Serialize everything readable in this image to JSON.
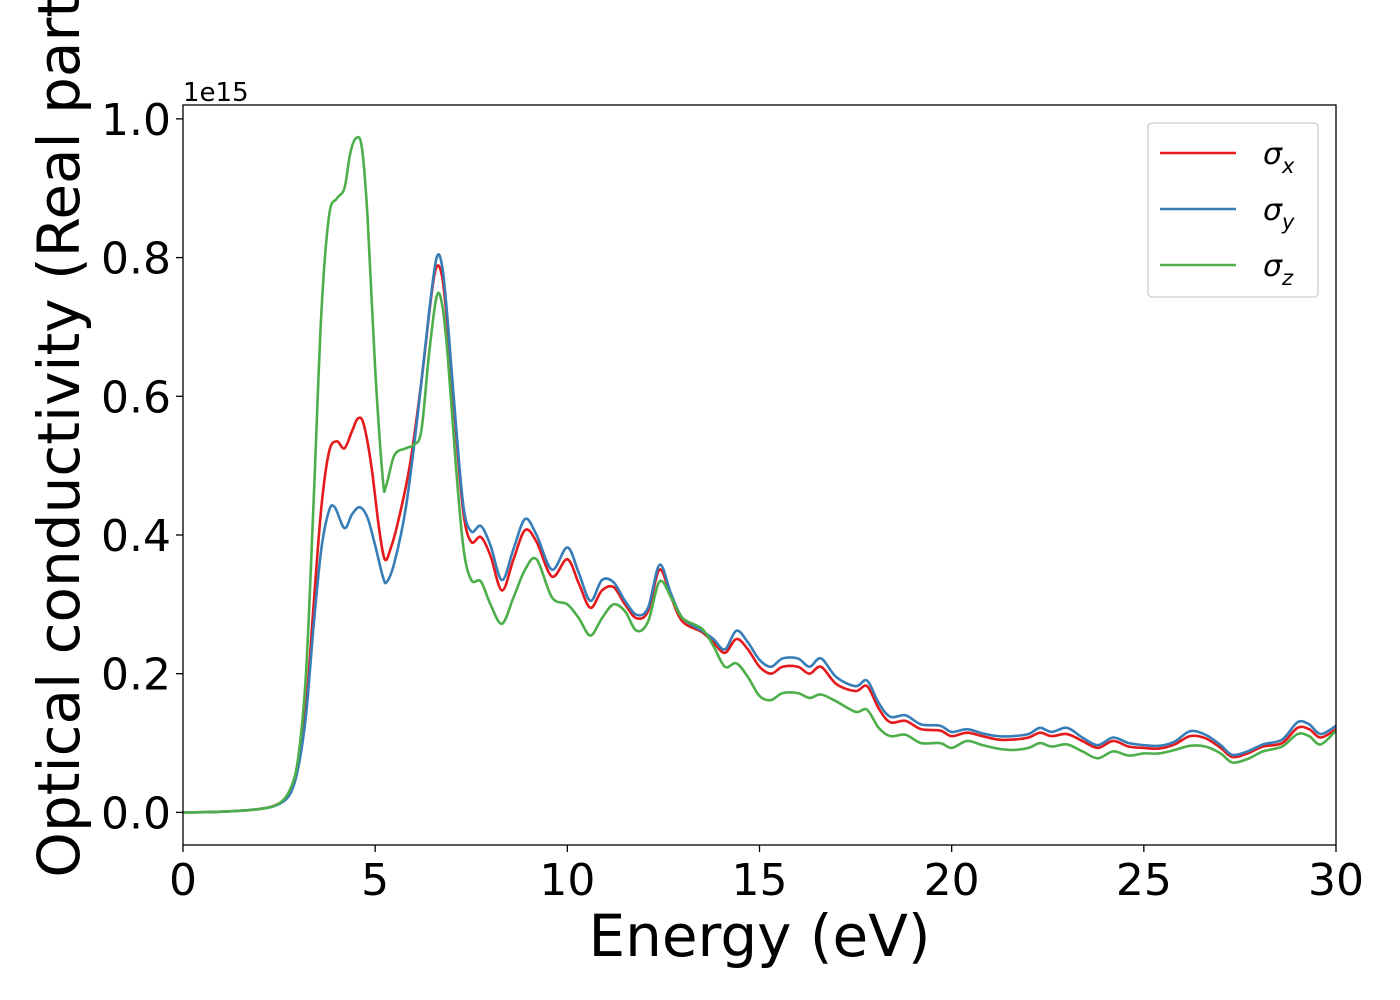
{
  "chart_data": {
    "type": "line",
    "title": "",
    "xlabel": "Energy (eV)",
    "ylabel": "Optical conductivity (Real part)",
    "offset_text": "1e15",
    "xlim": [
      0,
      30
    ],
    "ylim": [
      -0.047,
      1.02
    ],
    "y_scale_factor": 1000000000000000.0,
    "xticks": [
      0,
      5,
      10,
      15,
      20,
      25,
      30
    ],
    "xtick_labels": [
      "0",
      "5",
      "10",
      "15",
      "20",
      "25",
      "30"
    ],
    "yticks": [
      0.0,
      0.2,
      0.4,
      0.6,
      0.8,
      1.0
    ],
    "ytick_labels": [
      "0.0",
      "0.2",
      "0.4",
      "0.6",
      "0.8",
      "1.0"
    ],
    "grid": false,
    "legend_position": "top-right",
    "series": [
      {
        "name": "σx",
        "legend_symbol": "σ",
        "legend_subscript": "x",
        "color": "#e41a1c",
        "points": [
          [
            0,
            0
          ],
          [
            1,
            0.001
          ],
          [
            2,
            0.005
          ],
          [
            2.5,
            0.013
          ],
          [
            2.8,
            0.03
          ],
          [
            3.0,
            0.07
          ],
          [
            3.2,
            0.15
          ],
          [
            3.4,
            0.3
          ],
          [
            3.6,
            0.44
          ],
          [
            3.8,
            0.52
          ],
          [
            4.0,
            0.535
          ],
          [
            4.2,
            0.525
          ],
          [
            4.4,
            0.55
          ],
          [
            4.55,
            0.568
          ],
          [
            4.7,
            0.56
          ],
          [
            4.9,
            0.5
          ],
          [
            5.1,
            0.41
          ],
          [
            5.25,
            0.365
          ],
          [
            5.4,
            0.38
          ],
          [
            5.6,
            0.42
          ],
          [
            5.9,
            0.5
          ],
          [
            6.2,
            0.62
          ],
          [
            6.45,
            0.74
          ],
          [
            6.6,
            0.787
          ],
          [
            6.75,
            0.77
          ],
          [
            6.9,
            0.69
          ],
          [
            7.1,
            0.55
          ],
          [
            7.3,
            0.43
          ],
          [
            7.5,
            0.39
          ],
          [
            7.75,
            0.397
          ],
          [
            8.0,
            0.37
          ],
          [
            8.3,
            0.32
          ],
          [
            8.6,
            0.365
          ],
          [
            8.9,
            0.407
          ],
          [
            9.2,
            0.39
          ],
          [
            9.6,
            0.34
          ],
          [
            10.0,
            0.365
          ],
          [
            10.3,
            0.33
          ],
          [
            10.6,
            0.295
          ],
          [
            10.9,
            0.32
          ],
          [
            11.2,
            0.325
          ],
          [
            11.5,
            0.3
          ],
          [
            11.8,
            0.28
          ],
          [
            12.1,
            0.29
          ],
          [
            12.4,
            0.35
          ],
          [
            12.7,
            0.31
          ],
          [
            13.0,
            0.275
          ],
          [
            13.5,
            0.26
          ],
          [
            13.8,
            0.245
          ],
          [
            14.1,
            0.23
          ],
          [
            14.4,
            0.25
          ],
          [
            14.7,
            0.235
          ],
          [
            15.0,
            0.21
          ],
          [
            15.3,
            0.2
          ],
          [
            15.6,
            0.21
          ],
          [
            16.0,
            0.21
          ],
          [
            16.3,
            0.2
          ],
          [
            16.6,
            0.21
          ],
          [
            17.0,
            0.185
          ],
          [
            17.5,
            0.175
          ],
          [
            17.8,
            0.182
          ],
          [
            18.1,
            0.15
          ],
          [
            18.4,
            0.13
          ],
          [
            18.8,
            0.132
          ],
          [
            19.2,
            0.12
          ],
          [
            19.7,
            0.118
          ],
          [
            20.0,
            0.11
          ],
          [
            20.4,
            0.115
          ],
          [
            20.8,
            0.11
          ],
          [
            21.2,
            0.105
          ],
          [
            21.6,
            0.105
          ],
          [
            22.0,
            0.108
          ],
          [
            22.3,
            0.115
          ],
          [
            22.6,
            0.11
          ],
          [
            23.0,
            0.113
          ],
          [
            23.4,
            0.103
          ],
          [
            23.8,
            0.093
          ],
          [
            24.2,
            0.103
          ],
          [
            24.6,
            0.095
          ],
          [
            25.0,
            0.093
          ],
          [
            25.4,
            0.092
          ],
          [
            25.8,
            0.098
          ],
          [
            26.2,
            0.11
          ],
          [
            26.6,
            0.107
          ],
          [
            27.0,
            0.093
          ],
          [
            27.3,
            0.08
          ],
          [
            27.7,
            0.085
          ],
          [
            28.1,
            0.095
          ],
          [
            28.6,
            0.1
          ],
          [
            29.0,
            0.122
          ],
          [
            29.3,
            0.12
          ],
          [
            29.6,
            0.108
          ],
          [
            30.0,
            0.12
          ]
        ]
      },
      {
        "name": "σy",
        "legend_symbol": "σ",
        "legend_subscript": "y",
        "color": "#377eb8",
        "points": [
          [
            0,
            0
          ],
          [
            1,
            0.001
          ],
          [
            2,
            0.005
          ],
          [
            2.5,
            0.012
          ],
          [
            2.8,
            0.028
          ],
          [
            3.0,
            0.065
          ],
          [
            3.2,
            0.14
          ],
          [
            3.4,
            0.27
          ],
          [
            3.6,
            0.38
          ],
          [
            3.8,
            0.435
          ],
          [
            3.95,
            0.44
          ],
          [
            4.2,
            0.41
          ],
          [
            4.4,
            0.43
          ],
          [
            4.6,
            0.44
          ],
          [
            4.8,
            0.425
          ],
          [
            5.0,
            0.385
          ],
          [
            5.2,
            0.34
          ],
          [
            5.3,
            0.332
          ],
          [
            5.5,
            0.36
          ],
          [
            5.8,
            0.44
          ],
          [
            6.1,
            0.57
          ],
          [
            6.4,
            0.72
          ],
          [
            6.6,
            0.8
          ],
          [
            6.75,
            0.785
          ],
          [
            6.9,
            0.7
          ],
          [
            7.1,
            0.56
          ],
          [
            7.3,
            0.44
          ],
          [
            7.5,
            0.405
          ],
          [
            7.75,
            0.413
          ],
          [
            8.0,
            0.385
          ],
          [
            8.3,
            0.335
          ],
          [
            8.6,
            0.38
          ],
          [
            8.9,
            0.423
          ],
          [
            9.2,
            0.4
          ],
          [
            9.6,
            0.35
          ],
          [
            10.0,
            0.382
          ],
          [
            10.3,
            0.345
          ],
          [
            10.6,
            0.305
          ],
          [
            10.9,
            0.335
          ],
          [
            11.2,
            0.332
          ],
          [
            11.5,
            0.305
          ],
          [
            11.8,
            0.285
          ],
          [
            12.1,
            0.295
          ],
          [
            12.4,
            0.357
          ],
          [
            12.7,
            0.315
          ],
          [
            13.0,
            0.28
          ],
          [
            13.5,
            0.262
          ],
          [
            13.8,
            0.25
          ],
          [
            14.1,
            0.235
          ],
          [
            14.4,
            0.262
          ],
          [
            14.7,
            0.245
          ],
          [
            15.0,
            0.22
          ],
          [
            15.3,
            0.21
          ],
          [
            15.6,
            0.222
          ],
          [
            16.0,
            0.222
          ],
          [
            16.3,
            0.21
          ],
          [
            16.6,
            0.222
          ],
          [
            17.0,
            0.195
          ],
          [
            17.5,
            0.182
          ],
          [
            17.8,
            0.19
          ],
          [
            18.1,
            0.158
          ],
          [
            18.4,
            0.138
          ],
          [
            18.8,
            0.14
          ],
          [
            19.2,
            0.127
          ],
          [
            19.7,
            0.125
          ],
          [
            20.0,
            0.116
          ],
          [
            20.4,
            0.12
          ],
          [
            20.8,
            0.114
          ],
          [
            21.2,
            0.11
          ],
          [
            21.6,
            0.11
          ],
          [
            22.0,
            0.113
          ],
          [
            22.3,
            0.122
          ],
          [
            22.6,
            0.116
          ],
          [
            23.0,
            0.122
          ],
          [
            23.4,
            0.108
          ],
          [
            23.8,
            0.097
          ],
          [
            24.2,
            0.108
          ],
          [
            24.6,
            0.1
          ],
          [
            25.0,
            0.097
          ],
          [
            25.4,
            0.096
          ],
          [
            25.8,
            0.102
          ],
          [
            26.2,
            0.117
          ],
          [
            26.6,
            0.112
          ],
          [
            27.0,
            0.097
          ],
          [
            27.3,
            0.083
          ],
          [
            27.7,
            0.088
          ],
          [
            28.1,
            0.098
          ],
          [
            28.6,
            0.105
          ],
          [
            29.0,
            0.13
          ],
          [
            29.3,
            0.127
          ],
          [
            29.6,
            0.113
          ],
          [
            30.0,
            0.125
          ]
        ]
      },
      {
        "name": "σz",
        "legend_symbol": "σ",
        "legend_subscript": "z",
        "color": "#4daf4a",
        "points": [
          [
            0,
            0
          ],
          [
            1,
            0.001
          ],
          [
            2,
            0.005
          ],
          [
            2.5,
            0.013
          ],
          [
            2.8,
            0.035
          ],
          [
            3.0,
            0.08
          ],
          [
            3.2,
            0.2
          ],
          [
            3.4,
            0.45
          ],
          [
            3.6,
            0.72
          ],
          [
            3.8,
            0.86
          ],
          [
            4.0,
            0.885
          ],
          [
            4.2,
            0.9
          ],
          [
            4.35,
            0.95
          ],
          [
            4.5,
            0.972
          ],
          [
            4.65,
            0.96
          ],
          [
            4.8,
            0.86
          ],
          [
            5.0,
            0.64
          ],
          [
            5.2,
            0.48
          ],
          [
            5.28,
            0.47
          ],
          [
            5.5,
            0.515
          ],
          [
            5.8,
            0.525
          ],
          [
            6.0,
            0.53
          ],
          [
            6.2,
            0.55
          ],
          [
            6.4,
            0.66
          ],
          [
            6.6,
            0.744
          ],
          [
            6.75,
            0.73
          ],
          [
            6.9,
            0.65
          ],
          [
            7.1,
            0.5
          ],
          [
            7.3,
            0.38
          ],
          [
            7.5,
            0.335
          ],
          [
            7.75,
            0.333
          ],
          [
            8.0,
            0.3
          ],
          [
            8.3,
            0.272
          ],
          [
            8.6,
            0.31
          ],
          [
            8.9,
            0.35
          ],
          [
            9.2,
            0.365
          ],
          [
            9.6,
            0.31
          ],
          [
            10.0,
            0.3
          ],
          [
            10.3,
            0.28
          ],
          [
            10.6,
            0.255
          ],
          [
            10.9,
            0.28
          ],
          [
            11.2,
            0.3
          ],
          [
            11.5,
            0.29
          ],
          [
            11.8,
            0.262
          ],
          [
            12.1,
            0.275
          ],
          [
            12.4,
            0.333
          ],
          [
            12.7,
            0.31
          ],
          [
            13.0,
            0.28
          ],
          [
            13.5,
            0.265
          ],
          [
            13.8,
            0.24
          ],
          [
            14.1,
            0.21
          ],
          [
            14.4,
            0.215
          ],
          [
            14.7,
            0.195
          ],
          [
            15.0,
            0.168
          ],
          [
            15.3,
            0.162
          ],
          [
            15.6,
            0.172
          ],
          [
            16.0,
            0.172
          ],
          [
            16.3,
            0.165
          ],
          [
            16.6,
            0.17
          ],
          [
            17.0,
            0.16
          ],
          [
            17.5,
            0.145
          ],
          [
            17.8,
            0.148
          ],
          [
            18.1,
            0.122
          ],
          [
            18.4,
            0.11
          ],
          [
            18.8,
            0.112
          ],
          [
            19.2,
            0.1
          ],
          [
            19.7,
            0.1
          ],
          [
            20.0,
            0.093
          ],
          [
            20.4,
            0.103
          ],
          [
            20.8,
            0.097
          ],
          [
            21.2,
            0.092
          ],
          [
            21.6,
            0.09
          ],
          [
            22.0,
            0.093
          ],
          [
            22.3,
            0.1
          ],
          [
            22.6,
            0.095
          ],
          [
            23.0,
            0.098
          ],
          [
            23.4,
            0.088
          ],
          [
            23.8,
            0.078
          ],
          [
            24.2,
            0.088
          ],
          [
            24.6,
            0.082
          ],
          [
            25.0,
            0.085
          ],
          [
            25.4,
            0.085
          ],
          [
            25.8,
            0.09
          ],
          [
            26.2,
            0.096
          ],
          [
            26.6,
            0.095
          ],
          [
            27.0,
            0.085
          ],
          [
            27.3,
            0.072
          ],
          [
            27.7,
            0.077
          ],
          [
            28.1,
            0.088
          ],
          [
            28.6,
            0.095
          ],
          [
            29.0,
            0.113
          ],
          [
            29.3,
            0.11
          ],
          [
            29.6,
            0.098
          ],
          [
            30.0,
            0.118
          ]
        ]
      }
    ]
  }
}
